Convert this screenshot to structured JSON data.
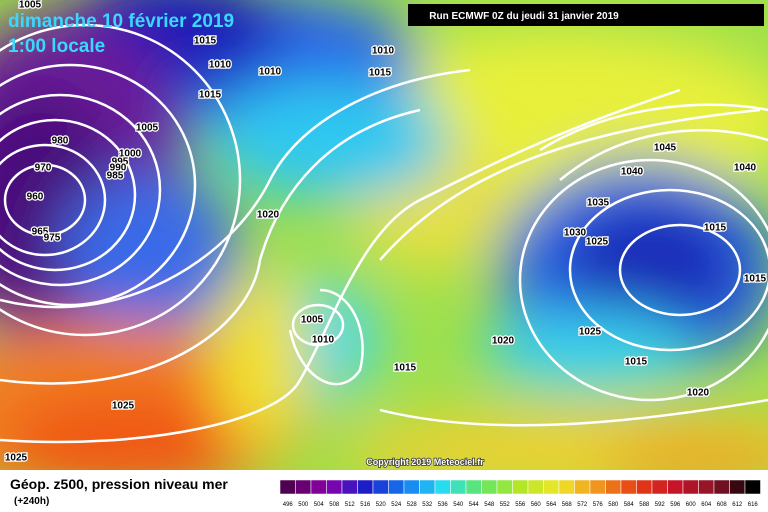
{
  "header": {
    "date": "dimanche 10 février 2019",
    "time": "1:00 locale",
    "run": "Run ECMWF 0Z du jeudi 31 janvier 2019"
  },
  "isobars": [
    "1005",
    "1015",
    "1010",
    "1010",
    "1010",
    "1015",
    "1015",
    "1005",
    "980",
    "1000",
    "995",
    "990",
    "985",
    "970",
    "960",
    "965",
    "975",
    "1020",
    "1005",
    "1010",
    "1015",
    "1020",
    "1025",
    "1025",
    "1045",
    "1040",
    "1040",
    "1035",
    "1030",
    "1025",
    "1015",
    "1015",
    "1025",
    "1015",
    "1020"
  ],
  "copyright": "Copyright 2019 Meteociel.fr",
  "footer": {
    "title": "Géop. z500, pression niveau mer",
    "lead": "(+240h)"
  },
  "scale": [
    496,
    500,
    504,
    508,
    512,
    516,
    520,
    524,
    528,
    532,
    536,
    540,
    544,
    548,
    552,
    556,
    560,
    564,
    568,
    572,
    576,
    580,
    584,
    588,
    592,
    596,
    600,
    604,
    608,
    612,
    616
  ]
}
